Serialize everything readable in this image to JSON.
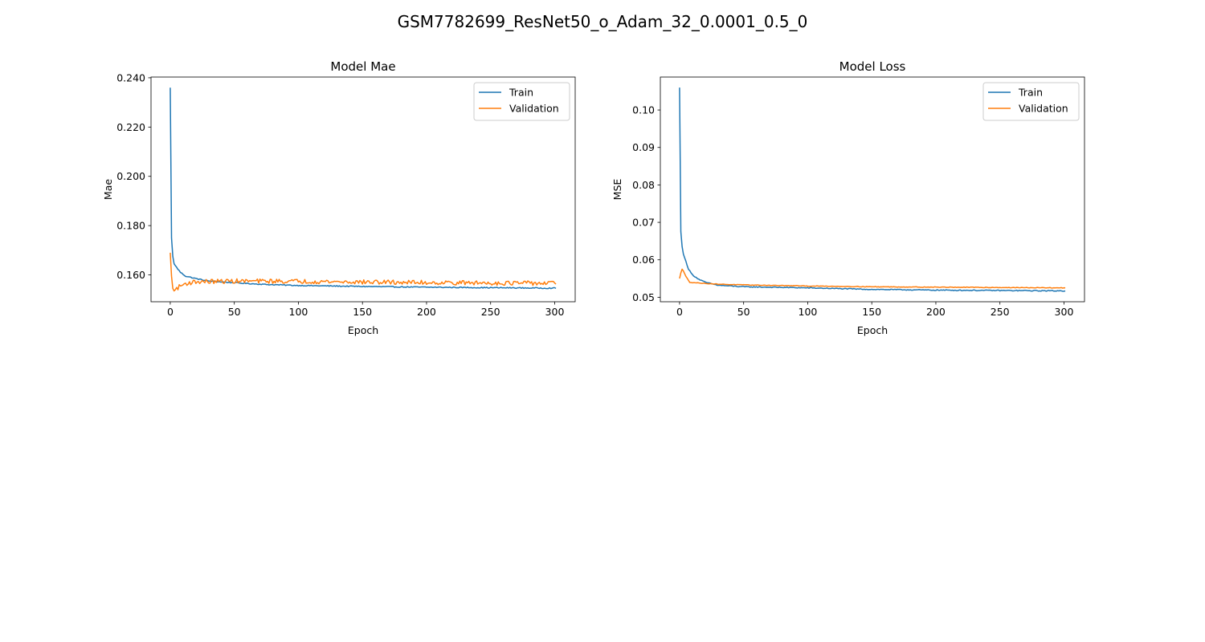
{
  "figure": {
    "suptitle": "GSM7782699_ResNet50_o_Adam_32_0.0001_0.5_0"
  },
  "chart_data": [
    {
      "type": "line",
      "title": "Model Mae",
      "xlabel": "Epoch",
      "ylabel": "Mae",
      "xlim": [
        -15,
        316
      ],
      "ylim": [
        0.1491,
        0.2403
      ],
      "xticks": [
        0,
        50,
        100,
        150,
        200,
        250,
        300
      ],
      "xtick_labels": [
        "0",
        "50",
        "100",
        "150",
        "200",
        "250",
        "300"
      ],
      "yticks": [
        0.16,
        0.18,
        0.2,
        0.22,
        0.24
      ],
      "ytick_labels": [
        "0.160",
        "0.180",
        "0.200",
        "0.220",
        "0.240"
      ],
      "grid": false,
      "legend_position": "top-right",
      "epochs": 302,
      "series": [
        {
          "name": "Train",
          "color": "#1f77b4",
          "keypoints": [
            [
              0,
              0.236
            ],
            [
              1,
              0.175
            ],
            [
              2,
              0.1675
            ],
            [
              3,
              0.1645
            ],
            [
              5,
              0.163
            ],
            [
              8,
              0.161
            ],
            [
              12,
              0.1595
            ],
            [
              20,
              0.1585
            ],
            [
              30,
              0.1575
            ],
            [
              50,
              0.1568
            ],
            [
              75,
              0.1561
            ],
            [
              100,
              0.1557
            ],
            [
              150,
              0.1553
            ],
            [
              200,
              0.155
            ],
            [
              250,
              0.1548
            ],
            [
              301,
              0.1546
            ]
          ],
          "noise": 0.0002
        },
        {
          "name": "Validation",
          "color": "#ff7f0e",
          "keypoints": [
            [
              0,
              0.169
            ],
            [
              1,
              0.1595
            ],
            [
              2,
              0.1545
            ],
            [
              3,
              0.1535
            ],
            [
              5,
              0.1545
            ],
            [
              8,
              0.1555
            ],
            [
              12,
              0.1565
            ],
            [
              20,
              0.1572
            ],
            [
              50,
              0.1575
            ],
            [
              100,
              0.1574
            ],
            [
              150,
              0.1571
            ],
            [
              200,
              0.1569
            ],
            [
              250,
              0.1567
            ],
            [
              301,
              0.1566
            ]
          ],
          "noise": 0.0009
        }
      ]
    },
    {
      "type": "line",
      "title": "Model Loss",
      "xlabel": "Epoch",
      "ylabel": "MSE",
      "xlim": [
        -15,
        316
      ],
      "ylim": [
        0.0488,
        0.1088
      ],
      "xticks": [
        0,
        50,
        100,
        150,
        200,
        250,
        300
      ],
      "xtick_labels": [
        "0",
        "50",
        "100",
        "150",
        "200",
        "250",
        "300"
      ],
      "yticks": [
        0.05,
        0.06,
        0.07,
        0.08,
        0.09,
        0.1
      ],
      "ytick_labels": [
        "0.05",
        "0.06",
        "0.07",
        "0.08",
        "0.09",
        "0.10"
      ],
      "grid": false,
      "legend_position": "top-right",
      "epochs": 302,
      "series": [
        {
          "name": "Train",
          "color": "#1f77b4",
          "keypoints": [
            [
              0,
              0.106
            ],
            [
              1,
              0.0675
            ],
            [
              2,
              0.0635
            ],
            [
              3,
              0.0615
            ],
            [
              5,
              0.0595
            ],
            [
              7,
              0.0575
            ],
            [
              10,
              0.056
            ],
            [
              15,
              0.0548
            ],
            [
              20,
              0.054
            ],
            [
              30,
              0.0532
            ],
            [
              50,
              0.0528
            ],
            [
              100,
              0.0525
            ],
            [
              150,
              0.0521
            ],
            [
              200,
              0.0519
            ],
            [
              250,
              0.0518
            ],
            [
              301,
              0.0517
            ]
          ],
          "noise": 0.00012
        },
        {
          "name": "Validation",
          "color": "#ff7f0e",
          "keypoints": [
            [
              0,
              0.055
            ],
            [
              1,
              0.0565
            ],
            [
              2,
              0.0575
            ],
            [
              3,
              0.057
            ],
            [
              5,
              0.0555
            ],
            [
              8,
              0.054
            ],
            [
              15,
              0.0538
            ],
            [
              30,
              0.0535
            ],
            [
              50,
              0.0533
            ],
            [
              100,
              0.053
            ],
            [
              150,
              0.0528
            ],
            [
              200,
              0.0527
            ],
            [
              250,
              0.0526
            ],
            [
              301,
              0.0525
            ]
          ],
          "noise": 8e-05
        }
      ]
    }
  ]
}
